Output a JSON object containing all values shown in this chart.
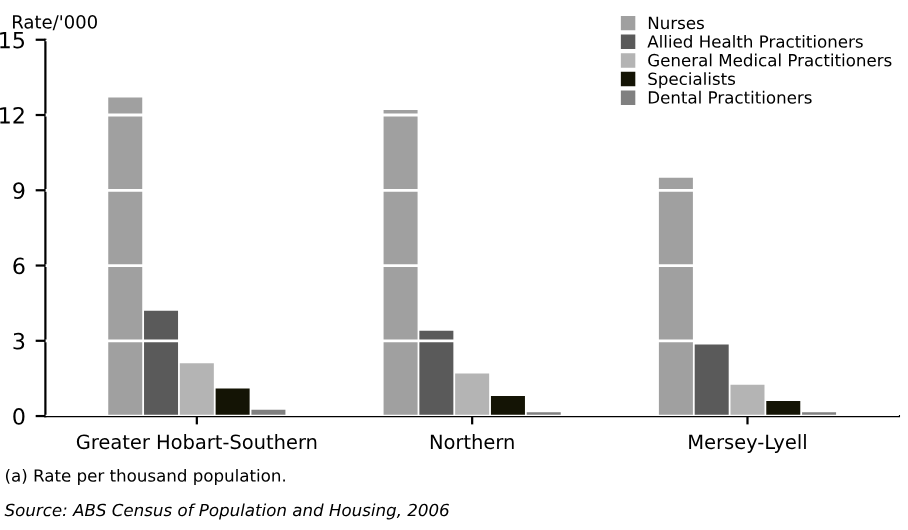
{
  "chart_data": {
    "type": "bar",
    "ylabel": "Rate/'000",
    "categories": [
      "Greater Hobart-Southern",
      "Northern",
      "Mersey-Lyell"
    ],
    "series": [
      {
        "name": "Nurses",
        "color": "#a0a0a0",
        "values": [
          12.7,
          12.2,
          9.5
        ]
      },
      {
        "name": "Allied Health Practitioners",
        "color": "#5a5a5a",
        "values": [
          4.2,
          3.4,
          2.85
        ]
      },
      {
        "name": "General Medical Practitioners",
        "color": "#b4b4b4",
        "values": [
          2.1,
          1.7,
          1.25
        ]
      },
      {
        "name": "Specialists",
        "color": "#141405",
        "values": [
          1.1,
          0.8,
          0.6
        ]
      },
      {
        "name": "Dental Practitioners",
        "color": "#808080",
        "values": [
          0.25,
          0.15,
          0.15
        ]
      }
    ],
    "ylim": [
      0,
      15
    ],
    "yticks": [
      0,
      3,
      6,
      9,
      12,
      15
    ],
    "grid": "y",
    "legend": "top right",
    "annotations": [
      "(a) Rate per thousand population.",
      "Source: ABS Census of Population and Housing, 2006"
    ]
  }
}
